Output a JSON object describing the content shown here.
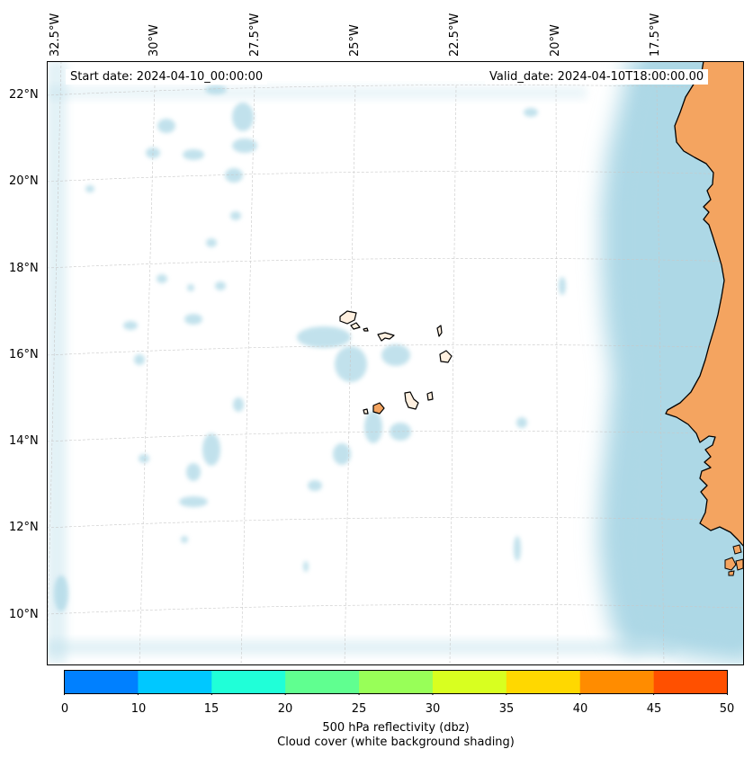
{
  "map": {
    "longitude_labels": [
      "32.5°W",
      "30°W",
      "27.5°W",
      "25°W",
      "22.5°W",
      "20°W",
      "17.5°W"
    ],
    "latitude_labels": [
      "22°N",
      "20°N",
      "18°N",
      "16°N",
      "14°N",
      "12°N",
      "10°N"
    ],
    "start_date": "Start date: 2024-04-10_00:00:00",
    "valid_date": "Valid_date: 2024-04-10T18:00:00.00"
  },
  "colorbar": {
    "ticks": [
      "0",
      "10",
      "15",
      "20",
      "25",
      "30",
      "35",
      "40",
      "45",
      "50"
    ],
    "colors": [
      "#0080ff",
      "#00c8ff",
      "#20ffd8",
      "#60ff90",
      "#98ff58",
      "#d8ff20",
      "#ffd800",
      "#ff8c00",
      "#ff5000"
    ],
    "label_line1": "500 hPa reflectivity (dbz)",
    "label_line2": "Cloud cover (white background shading)"
  },
  "colors": {
    "land": "#f4a460",
    "cloud": "#add8e6",
    "coast": "#000000",
    "grid": "#c8c8c8"
  }
}
